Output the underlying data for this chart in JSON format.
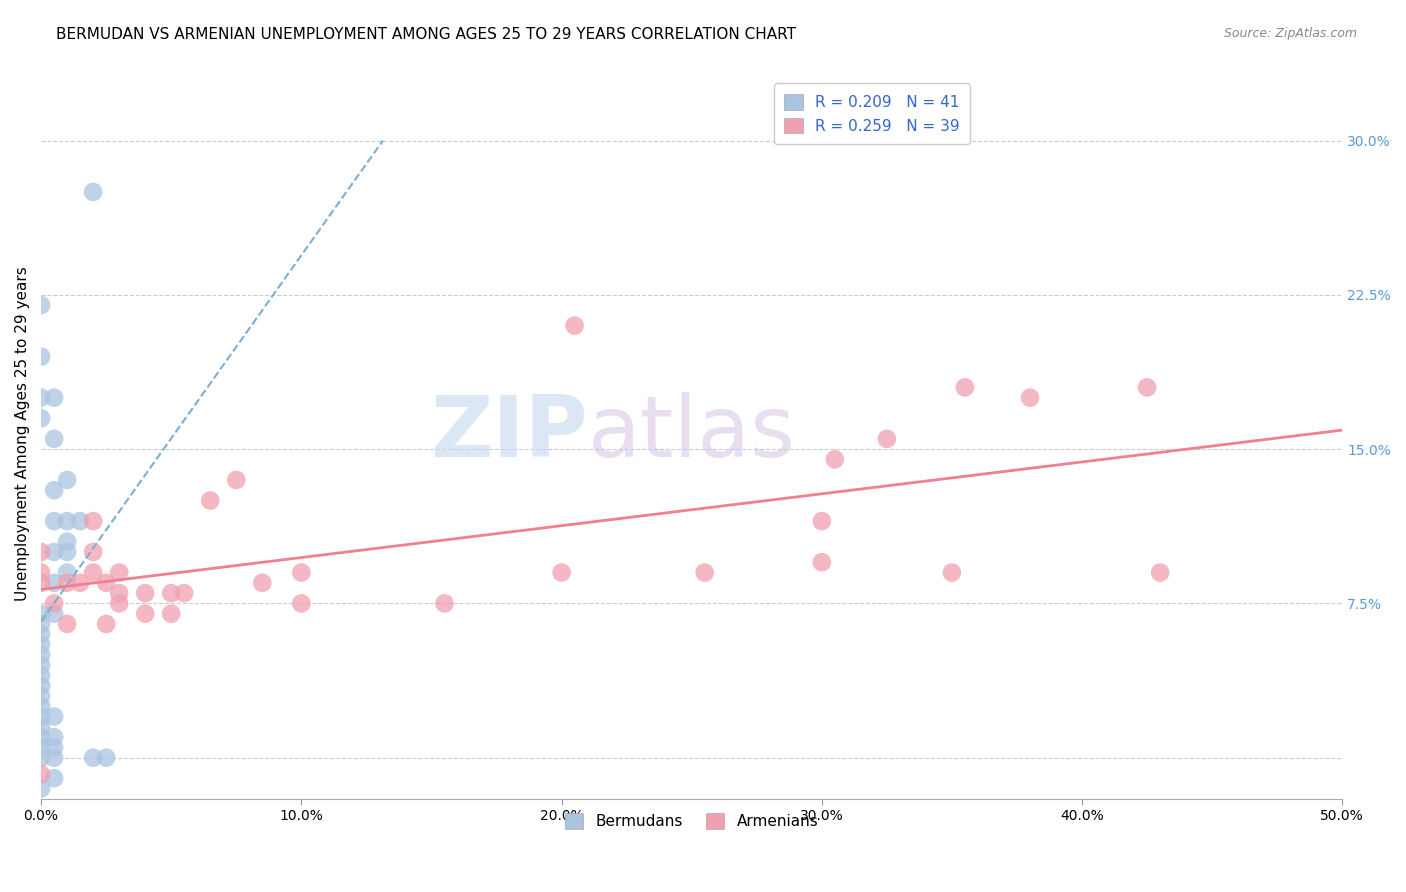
{
  "title": "BERMUDAN VS ARMENIAN UNEMPLOYMENT AMONG AGES 25 TO 29 YEARS CORRELATION CHART",
  "source": "Source: ZipAtlas.com",
  "ylabel": "Unemployment Among Ages 25 to 29 years",
  "xlim": [
    0.0,
    0.5
  ],
  "ylim": [
    -0.02,
    0.335
  ],
  "ytick_vals": [
    0.0,
    0.075,
    0.15,
    0.225,
    0.3
  ],
  "xtick_vals": [
    0.0,
    0.1,
    0.2,
    0.3,
    0.4,
    0.5
  ],
  "xticklabels": [
    "0.0%",
    "10.0%",
    "20.0%",
    "30.0%",
    "40.0%",
    "50.0%"
  ],
  "yticklabels_right": [
    "",
    "7.5%",
    "15.0%",
    "22.5%",
    "30.0%"
  ],
  "legend_label_bermudans": "Bermudans",
  "legend_label_armenians": "Armenians",
  "legend_R1": "R = 0.209",
  "legend_N1": "N = 41",
  "legend_R2": "R = 0.259",
  "legend_N2": "N = 39",
  "watermark_zip": "ZIP",
  "watermark_atlas": "atlas",
  "bermudans_scatter": [
    [
      0.0,
      0.0
    ],
    [
      0.0,
      0.005
    ],
    [
      0.0,
      0.01
    ],
    [
      0.0,
      0.015
    ],
    [
      0.0,
      0.02
    ],
    [
      0.0,
      0.025
    ],
    [
      0.0,
      0.03
    ],
    [
      0.0,
      0.035
    ],
    [
      0.0,
      0.04
    ],
    [
      0.0,
      0.045
    ],
    [
      0.0,
      0.05
    ],
    [
      0.0,
      0.055
    ],
    [
      0.0,
      0.06
    ],
    [
      0.0,
      0.065
    ],
    [
      0.0,
      0.07
    ],
    [
      0.005,
      0.0
    ],
    [
      0.005,
      0.005
    ],
    [
      0.005,
      0.01
    ],
    [
      0.005,
      0.02
    ],
    [
      0.005,
      0.07
    ],
    [
      0.005,
      0.085
    ],
    [
      0.005,
      0.1
    ],
    [
      0.005,
      0.115
    ],
    [
      0.005,
      0.13
    ],
    [
      0.005,
      0.155
    ],
    [
      0.005,
      0.175
    ],
    [
      0.01,
      0.09
    ],
    [
      0.01,
      0.1
    ],
    [
      0.01,
      0.105
    ],
    [
      0.01,
      0.115
    ],
    [
      0.01,
      0.135
    ],
    [
      0.015,
      0.115
    ],
    [
      0.02,
      0.0
    ],
    [
      0.025,
      0.0
    ],
    [
      0.0,
      -0.015
    ],
    [
      0.005,
      -0.01
    ],
    [
      0.02,
      0.275
    ],
    [
      0.0,
      0.22
    ],
    [
      0.0,
      0.195
    ],
    [
      0.0,
      0.175
    ],
    [
      0.0,
      0.165
    ]
  ],
  "armenians_scatter": [
    [
      0.0,
      0.085
    ],
    [
      0.0,
      0.09
    ],
    [
      0.0,
      0.1
    ],
    [
      0.005,
      0.075
    ],
    [
      0.01,
      0.065
    ],
    [
      0.01,
      0.085
    ],
    [
      0.015,
      0.085
    ],
    [
      0.02,
      0.09
    ],
    [
      0.02,
      0.1
    ],
    [
      0.02,
      0.115
    ],
    [
      0.025,
      0.065
    ],
    [
      0.025,
      0.085
    ],
    [
      0.03,
      0.075
    ],
    [
      0.03,
      0.08
    ],
    [
      0.03,
      0.09
    ],
    [
      0.04,
      0.07
    ],
    [
      0.04,
      0.08
    ],
    [
      0.05,
      0.07
    ],
    [
      0.05,
      0.08
    ],
    [
      0.055,
      0.08
    ],
    [
      0.065,
      0.125
    ],
    [
      0.075,
      0.135
    ],
    [
      0.085,
      0.085
    ],
    [
      0.1,
      0.075
    ],
    [
      0.1,
      0.09
    ],
    [
      0.155,
      0.075
    ],
    [
      0.2,
      0.09
    ],
    [
      0.205,
      0.21
    ],
    [
      0.255,
      0.09
    ],
    [
      0.3,
      0.095
    ],
    [
      0.3,
      0.115
    ],
    [
      0.305,
      0.145
    ],
    [
      0.325,
      0.155
    ],
    [
      0.35,
      0.09
    ],
    [
      0.355,
      0.18
    ],
    [
      0.38,
      0.175
    ],
    [
      0.425,
      0.18
    ],
    [
      0.43,
      0.09
    ],
    [
      0.0,
      -0.008
    ]
  ],
  "blue_line_color": "#7bafd4",
  "pink_line_color": "#f08090",
  "scatter_blue": "#aac4e0",
  "scatter_pink": "#f0a0b0",
  "title_fontsize": 11,
  "source_fontsize": 9,
  "axis_label_fontsize": 11,
  "tick_fontsize": 10,
  "watermark_color_zip": "#c5d8f0",
  "watermark_color_atlas": "#d8c8e8",
  "background_color": "#ffffff",
  "grid_color": "#cccccc"
}
